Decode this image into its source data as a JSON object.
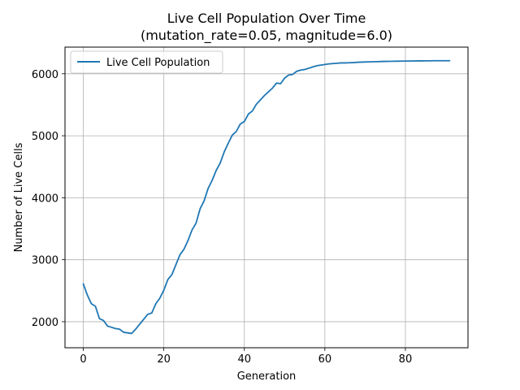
{
  "chart_data": {
    "type": "line",
    "title": "Live Cell Population Over Time",
    "subtitle": "(mutation_rate=0.05, magnitude=6.0)",
    "xlabel": "Generation",
    "ylabel": "Number of Live Cells",
    "xlim": [
      -4.55,
      95.55
    ],
    "ylim": [
      1580,
      6430
    ],
    "xticks": [
      0,
      20,
      40,
      60,
      80
    ],
    "yticks": [
      2000,
      3000,
      4000,
      5000,
      6000
    ],
    "grid": true,
    "legend_position": "upper left",
    "series": [
      {
        "name": "Live Cell Population",
        "color": "#1f77b4",
        "x": [
          0,
          1,
          2,
          3,
          4,
          5,
          6,
          7,
          8,
          9,
          10,
          11,
          12,
          13,
          14,
          15,
          16,
          17,
          18,
          19,
          20,
          21,
          22,
          23,
          24,
          25,
          26,
          27,
          28,
          29,
          30,
          31,
          32,
          33,
          34,
          35,
          36,
          37,
          38,
          39,
          40,
          41,
          42,
          43,
          44,
          45,
          46,
          47,
          48,
          49,
          50,
          51,
          52,
          53,
          54,
          55,
          56,
          57,
          58,
          59,
          60,
          61,
          62,
          63,
          64,
          65,
          66,
          67,
          68,
          69,
          70,
          71,
          72,
          73,
          74,
          75,
          76,
          77,
          78,
          79,
          80,
          81,
          82,
          83,
          84,
          85,
          86,
          87,
          88,
          89,
          90,
          91
        ],
        "values": [
          2610,
          2430,
          2290,
          2250,
          2050,
          2020,
          1930,
          1910,
          1890,
          1880,
          1830,
          1820,
          1810,
          1880,
          1960,
          2040,
          2120,
          2140,
          2290,
          2380,
          2510,
          2680,
          2760,
          2920,
          3080,
          3170,
          3310,
          3480,
          3590,
          3820,
          3950,
          4150,
          4280,
          4440,
          4560,
          4740,
          4880,
          5010,
          5070,
          5190,
          5230,
          5350,
          5400,
          5510,
          5580,
          5650,
          5710,
          5770,
          5850,
          5840,
          5930,
          5980,
          5990,
          6040,
          6060,
          6070,
          6090,
          6110,
          6130,
          6140,
          6150,
          6160,
          6165,
          6170,
          6175,
          6175,
          6178,
          6180,
          6185,
          6188,
          6190,
          6192,
          6194,
          6196,
          6198,
          6200,
          6201,
          6202,
          6203,
          6204,
          6205,
          6206,
          6207,
          6208,
          6208,
          6209,
          6209,
          6210,
          6210,
          6210,
          6210,
          6210
        ]
      }
    ]
  }
}
